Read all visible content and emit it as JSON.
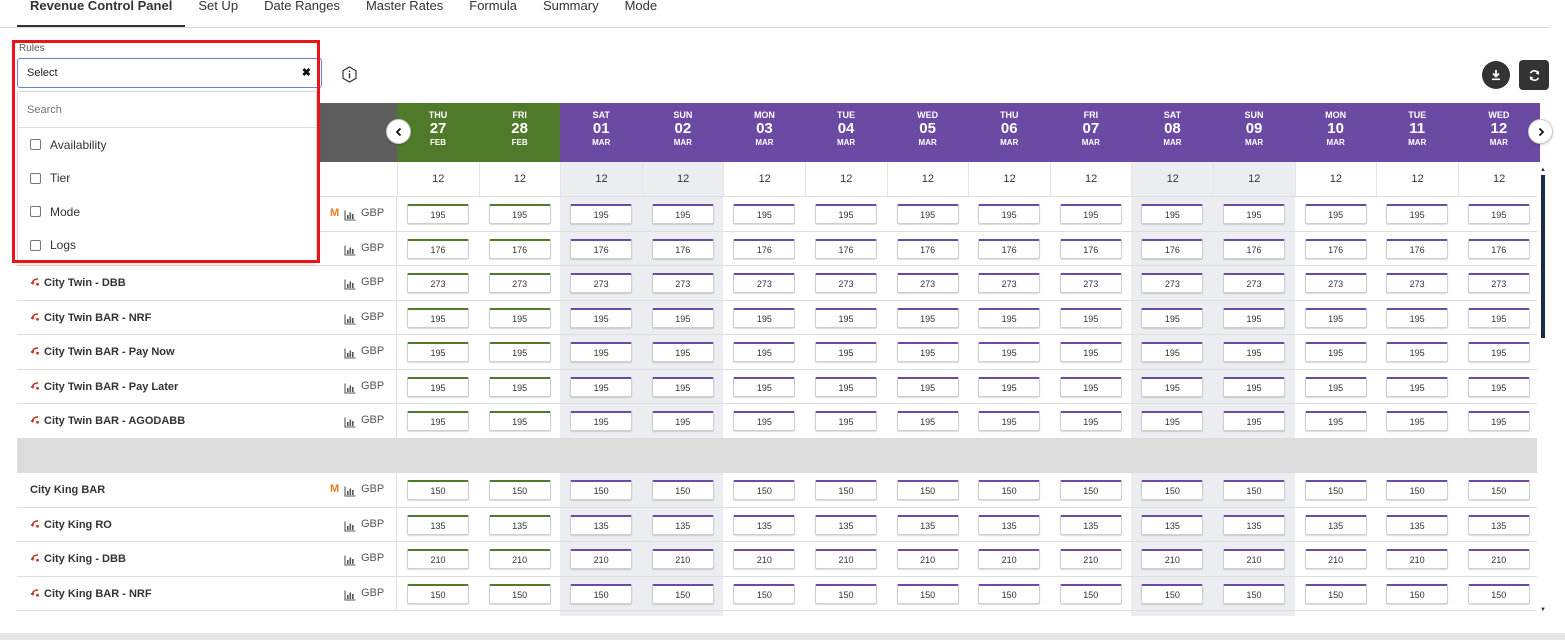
{
  "tabs": [
    "Revenue Control Panel",
    "Set Up",
    "Date Ranges",
    "Master Rates",
    "Formula",
    "Summary",
    "Mode"
  ],
  "active_tab": 0,
  "rules_label": "Rules",
  "select_value": "Select",
  "clear_glyph": "✖",
  "search_placeholder": "Search",
  "rule_options": [
    "Availability",
    "Tier",
    "Mode",
    "Logs"
  ],
  "icons": {
    "info": "info-icon",
    "download": "download-icon",
    "refresh": "refresh-icon",
    "prev": "chevron-left-icon",
    "next": "chevron-right-icon",
    "chart": "bar-chart-icon",
    "related": "linked-rate-icon"
  },
  "colors": {
    "green_header": "#4f7a2a",
    "purple_header": "#6a4aa3",
    "left_header": "#5f5e5e",
    "highlight_frame": "#e8141a",
    "master_badge": "#e67e22"
  },
  "dates": [
    {
      "dow": "THU",
      "day": "27",
      "mon": "FEB",
      "color": "green",
      "shade": false
    },
    {
      "dow": "FRI",
      "day": "28",
      "mon": "FEB",
      "color": "green",
      "shade": false
    },
    {
      "dow": "SAT",
      "day": "01",
      "mon": "MAR",
      "color": "purple",
      "shade": true
    },
    {
      "dow": "SUN",
      "day": "02",
      "mon": "MAR",
      "color": "purple",
      "shade": true
    },
    {
      "dow": "MON",
      "day": "03",
      "mon": "MAR",
      "color": "purple",
      "shade": false
    },
    {
      "dow": "TUE",
      "day": "04",
      "mon": "MAR",
      "color": "purple",
      "shade": false
    },
    {
      "dow": "WED",
      "day": "05",
      "mon": "MAR",
      "color": "purple",
      "shade": false
    },
    {
      "dow": "THU",
      "day": "06",
      "mon": "MAR",
      "color": "purple",
      "shade": false
    },
    {
      "dow": "FRI",
      "day": "07",
      "mon": "MAR",
      "color": "purple",
      "shade": false
    },
    {
      "dow": "SAT",
      "day": "08",
      "mon": "MAR",
      "color": "purple",
      "shade": true
    },
    {
      "dow": "SUN",
      "day": "09",
      "mon": "MAR",
      "color": "purple",
      "shade": true
    },
    {
      "dow": "MON",
      "day": "10",
      "mon": "MAR",
      "color": "purple",
      "shade": false
    },
    {
      "dow": "TUE",
      "day": "11",
      "mon": "MAR",
      "color": "purple",
      "shade": false
    },
    {
      "dow": "WED",
      "day": "12",
      "mon": "MAR",
      "color": "purple",
      "shade": false
    }
  ],
  "availability": "12",
  "currency": "GBP",
  "master_badge": "M",
  "rows": [
    {
      "label": "",
      "related": false,
      "master": true,
      "value": "195"
    },
    {
      "label": "",
      "related": true,
      "master": false,
      "value": "176"
    },
    {
      "label": "City Twin - DBB",
      "related": true,
      "master": false,
      "value": "273"
    },
    {
      "label": "City Twin BAR - NRF",
      "related": true,
      "master": false,
      "value": "195"
    },
    {
      "label": "City Twin BAR - Pay Now",
      "related": true,
      "master": false,
      "value": "195"
    },
    {
      "label": "City Twin BAR - Pay Later",
      "related": true,
      "master": false,
      "value": "195"
    },
    {
      "label": "City Twin BAR - AGODABB",
      "related": true,
      "master": false,
      "value": "195"
    },
    {
      "separator": true
    },
    {
      "label": "City King BAR",
      "related": false,
      "master": true,
      "value": "150"
    },
    {
      "label": "City King RO",
      "related": true,
      "master": false,
      "value": "135"
    },
    {
      "label": "City King - DBB",
      "related": true,
      "master": false,
      "value": "210"
    },
    {
      "label": "City King BAR - NRF",
      "related": true,
      "master": false,
      "value": "150"
    }
  ]
}
